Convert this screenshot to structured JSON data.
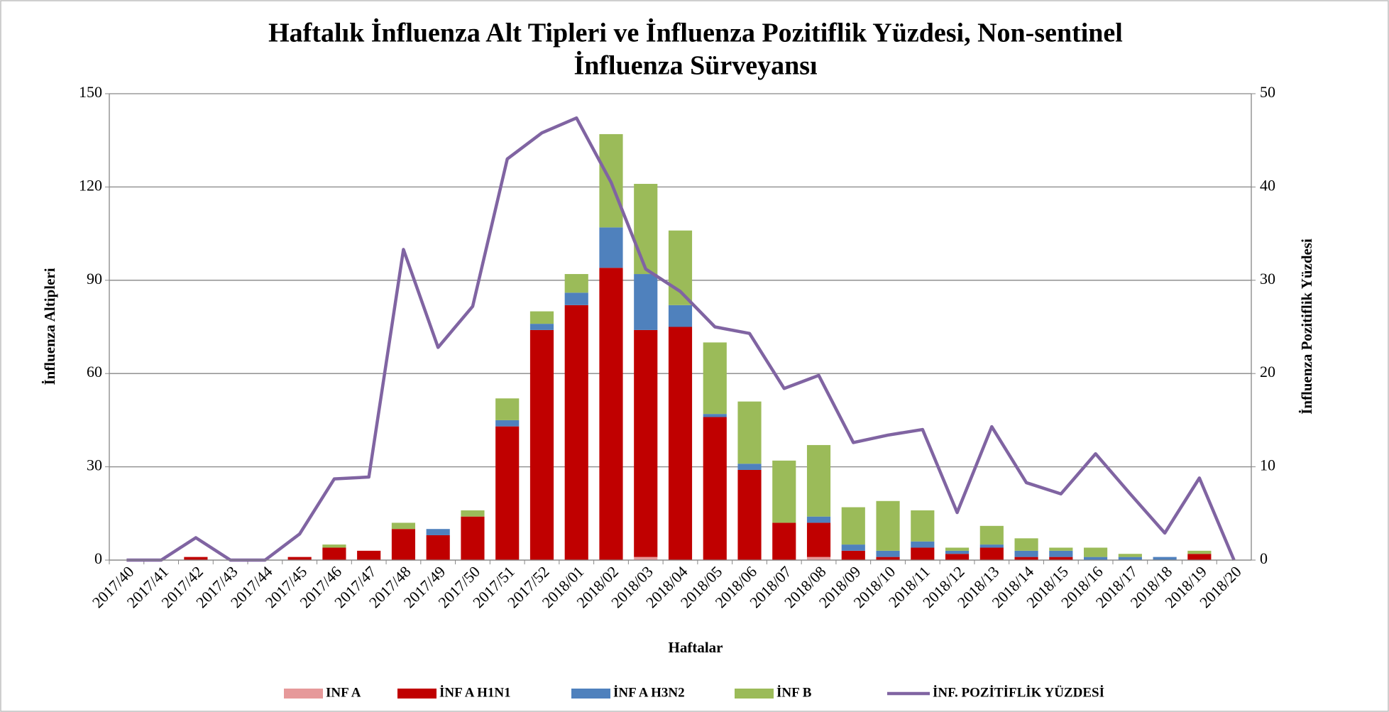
{
  "chart_data": {
    "type": "bar",
    "title": [
      "Haftalık İnfluenza Alt Tipleri ve İnfluenza Pozitiflik Yüzdesi, Non-sentinel",
      "İnfluenza Sürveyansı"
    ],
    "xlabel": "Haftalar",
    "ylabel": "İnfluenza Altipleri",
    "y2label": "İnfluenza Pozitiflik Yüzdesi",
    "categories": [
      "2017/40",
      "2017/41",
      "2017/42",
      "2017/43",
      "2017/44",
      "2017/45",
      "2017/46",
      "2017/47",
      "2017/48",
      "2017/49",
      "2017/50",
      "2017/51",
      "2017/52",
      "2018/01",
      "2018/02",
      "2018/03",
      "2018/04",
      "2018/05",
      "2018/06",
      "2018/07",
      "2018/08",
      "2018/09",
      "2018/10",
      "2018/11",
      "2018/12",
      "2018/13",
      "2018/14",
      "2018/15",
      "2018/16",
      "2018/17",
      "2018/18",
      "2018/19",
      "2018/20"
    ],
    "stacked": true,
    "grid": true,
    "legend": "bottom",
    "ylim": [
      0,
      150
    ],
    "yticks": [
      0,
      30,
      60,
      90,
      120,
      150
    ],
    "y2lim": [
      0,
      50
    ],
    "y2ticks": [
      0,
      10,
      20,
      30,
      40,
      50
    ],
    "series": [
      {
        "name": "INF A",
        "type": "bar",
        "color": "#e6999a",
        "values": [
          0,
          0,
          0,
          0,
          0,
          0,
          0,
          0,
          0,
          0,
          0,
          0,
          0,
          0,
          0,
          1,
          0,
          0,
          0,
          0,
          1,
          0,
          0,
          0,
          0,
          0,
          0,
          0,
          0,
          0,
          0,
          0,
          0
        ]
      },
      {
        "name": "İNF A H1N1",
        "type": "bar",
        "color": "#c00000",
        "values": [
          0,
          0,
          1,
          0,
          0,
          1,
          4,
          3,
          10,
          8,
          14,
          43,
          74,
          82,
          94,
          73,
          75,
          46,
          29,
          12,
          11,
          3,
          1,
          4,
          2,
          4,
          1,
          1,
          0,
          0,
          0,
          2,
          0
        ]
      },
      {
        "name": "İNF A H3N2",
        "type": "bar",
        "color": "#4f81bd",
        "values": [
          0,
          0,
          0,
          0,
          0,
          0,
          0,
          0,
          0,
          2,
          0,
          2,
          2,
          4,
          13,
          18,
          7,
          1,
          2,
          0,
          2,
          2,
          2,
          2,
          1,
          1,
          2,
          2,
          1,
          1,
          1,
          0,
          0
        ]
      },
      {
        "name": "İNF B",
        "type": "bar",
        "color": "#9bbb59",
        "values": [
          0,
          0,
          0,
          0,
          0,
          0,
          1,
          0,
          2,
          0,
          2,
          7,
          4,
          6,
          30,
          29,
          24,
          23,
          20,
          20,
          23,
          12,
          16,
          10,
          1,
          6,
          4,
          1,
          3,
          1,
          0,
          1,
          0
        ]
      },
      {
        "name": "İNF. POZİTİFLİK YÜZDESİ",
        "type": "line",
        "axis": "y2",
        "color": "#8064a2",
        "values": [
          0,
          0,
          2.4,
          0,
          0,
          2.8,
          8.7,
          8.9,
          33.3,
          22.8,
          27.2,
          43,
          45.8,
          47.4,
          40.5,
          31.2,
          28.8,
          25,
          24.3,
          18.4,
          19.8,
          12.6,
          13.4,
          14,
          5.1,
          14.3,
          8.3,
          7.1,
          11.4,
          7.1,
          2.9,
          8.8,
          0
        ]
      }
    ]
  }
}
